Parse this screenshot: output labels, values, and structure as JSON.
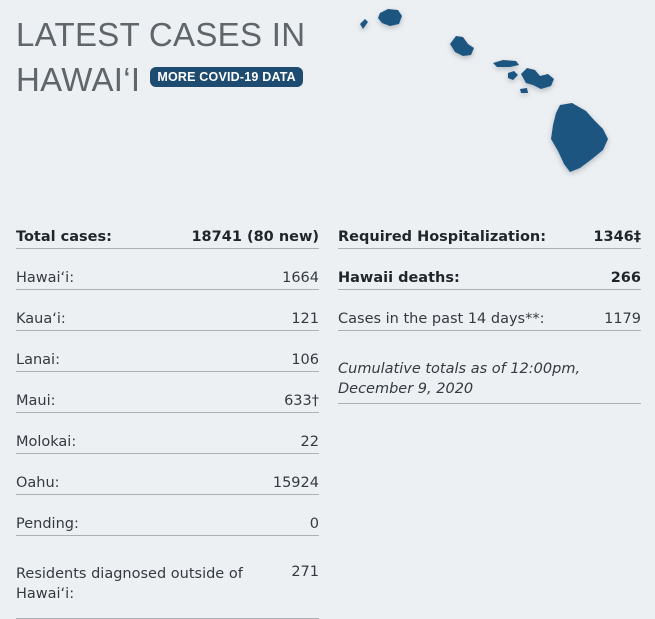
{
  "header": {
    "title_line1": "LATEST CASES IN",
    "title_line2": "HAWAI‘I",
    "badge_label": "MORE COVID-19 DATA"
  },
  "colors": {
    "background": "#edf0f3",
    "badge": "#1e4b70",
    "map_fill": "#1e5780",
    "divider": "#a9b0b6"
  },
  "map": {
    "icon": "hawaii-islands-map"
  },
  "left": [
    {
      "label": "Total cases:",
      "value": "18741 (80 new)"
    },
    {
      "label": "Hawai‘i:",
      "value": "1664"
    },
    {
      "label": "Kaua‘i:",
      "value": "121"
    },
    {
      "label": "Lanai:",
      "value": "106"
    },
    {
      "label": "Maui:",
      "value": "633†"
    },
    {
      "label": "Molokai:",
      "value": "22"
    },
    {
      "label": "Oahu:",
      "value": "15924"
    },
    {
      "label": "Pending:",
      "value": "0"
    },
    {
      "label": "Residents diagnosed outside of Hawai‘i:",
      "value": "271"
    }
  ],
  "right": [
    {
      "label": "Required Hospitalization:",
      "value": "1346‡"
    },
    {
      "label": "Hawaii deaths:",
      "value": "266"
    },
    {
      "label": "Cases in the past 14 days**:",
      "value": "1179"
    }
  ],
  "note": "Cumulative totals as of 12:00pm, December 9, 2020"
}
